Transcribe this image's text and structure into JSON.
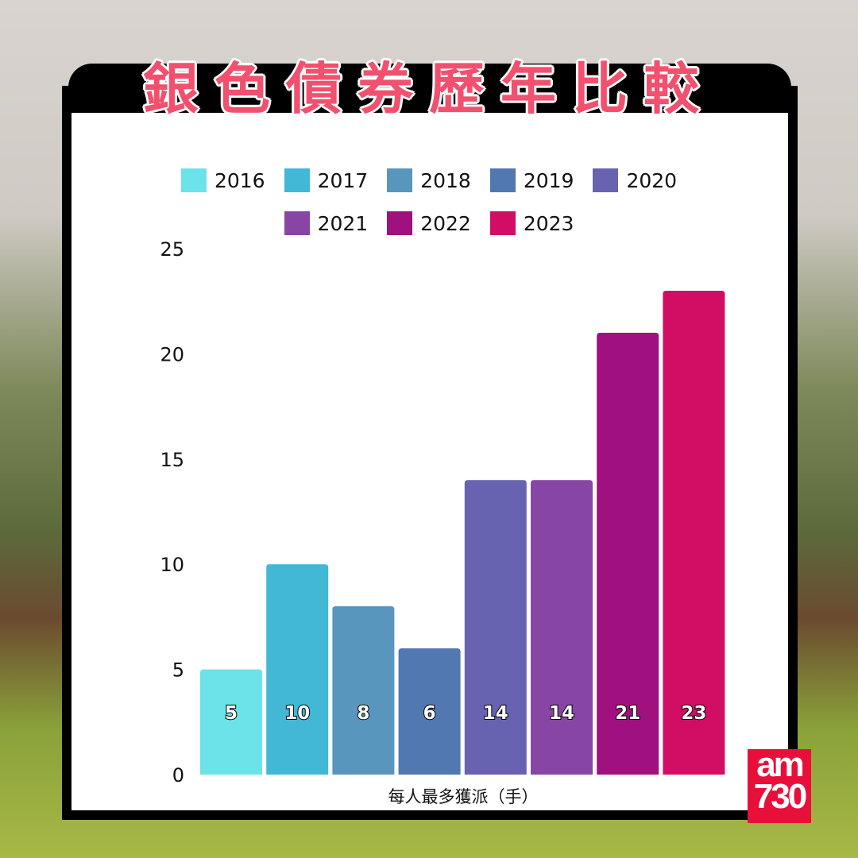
{
  "title": "銀色債券歷年比較",
  "logo": {
    "line1": "am",
    "line2": "730"
  },
  "chart_data": {
    "type": "bar",
    "title": "銀色債券歷年比較",
    "xlabel": "每人最多獲派（手）",
    "ylabel": "",
    "ylim": [
      0,
      25
    ],
    "yticks": [
      0,
      5,
      10,
      15,
      20,
      25
    ],
    "grid": false,
    "legend_placement": "top",
    "categories": [
      "2016",
      "2017",
      "2018",
      "2019",
      "2020",
      "2021",
      "2022",
      "2023"
    ],
    "values": [
      5,
      10,
      8,
      6,
      14,
      14,
      21,
      23
    ],
    "colors": [
      "#6ce3e8",
      "#42b8d6",
      "#5896bd",
      "#5178b0",
      "#6763b0",
      "#8745a6",
      "#a0107f",
      "#d10e63"
    ]
  }
}
